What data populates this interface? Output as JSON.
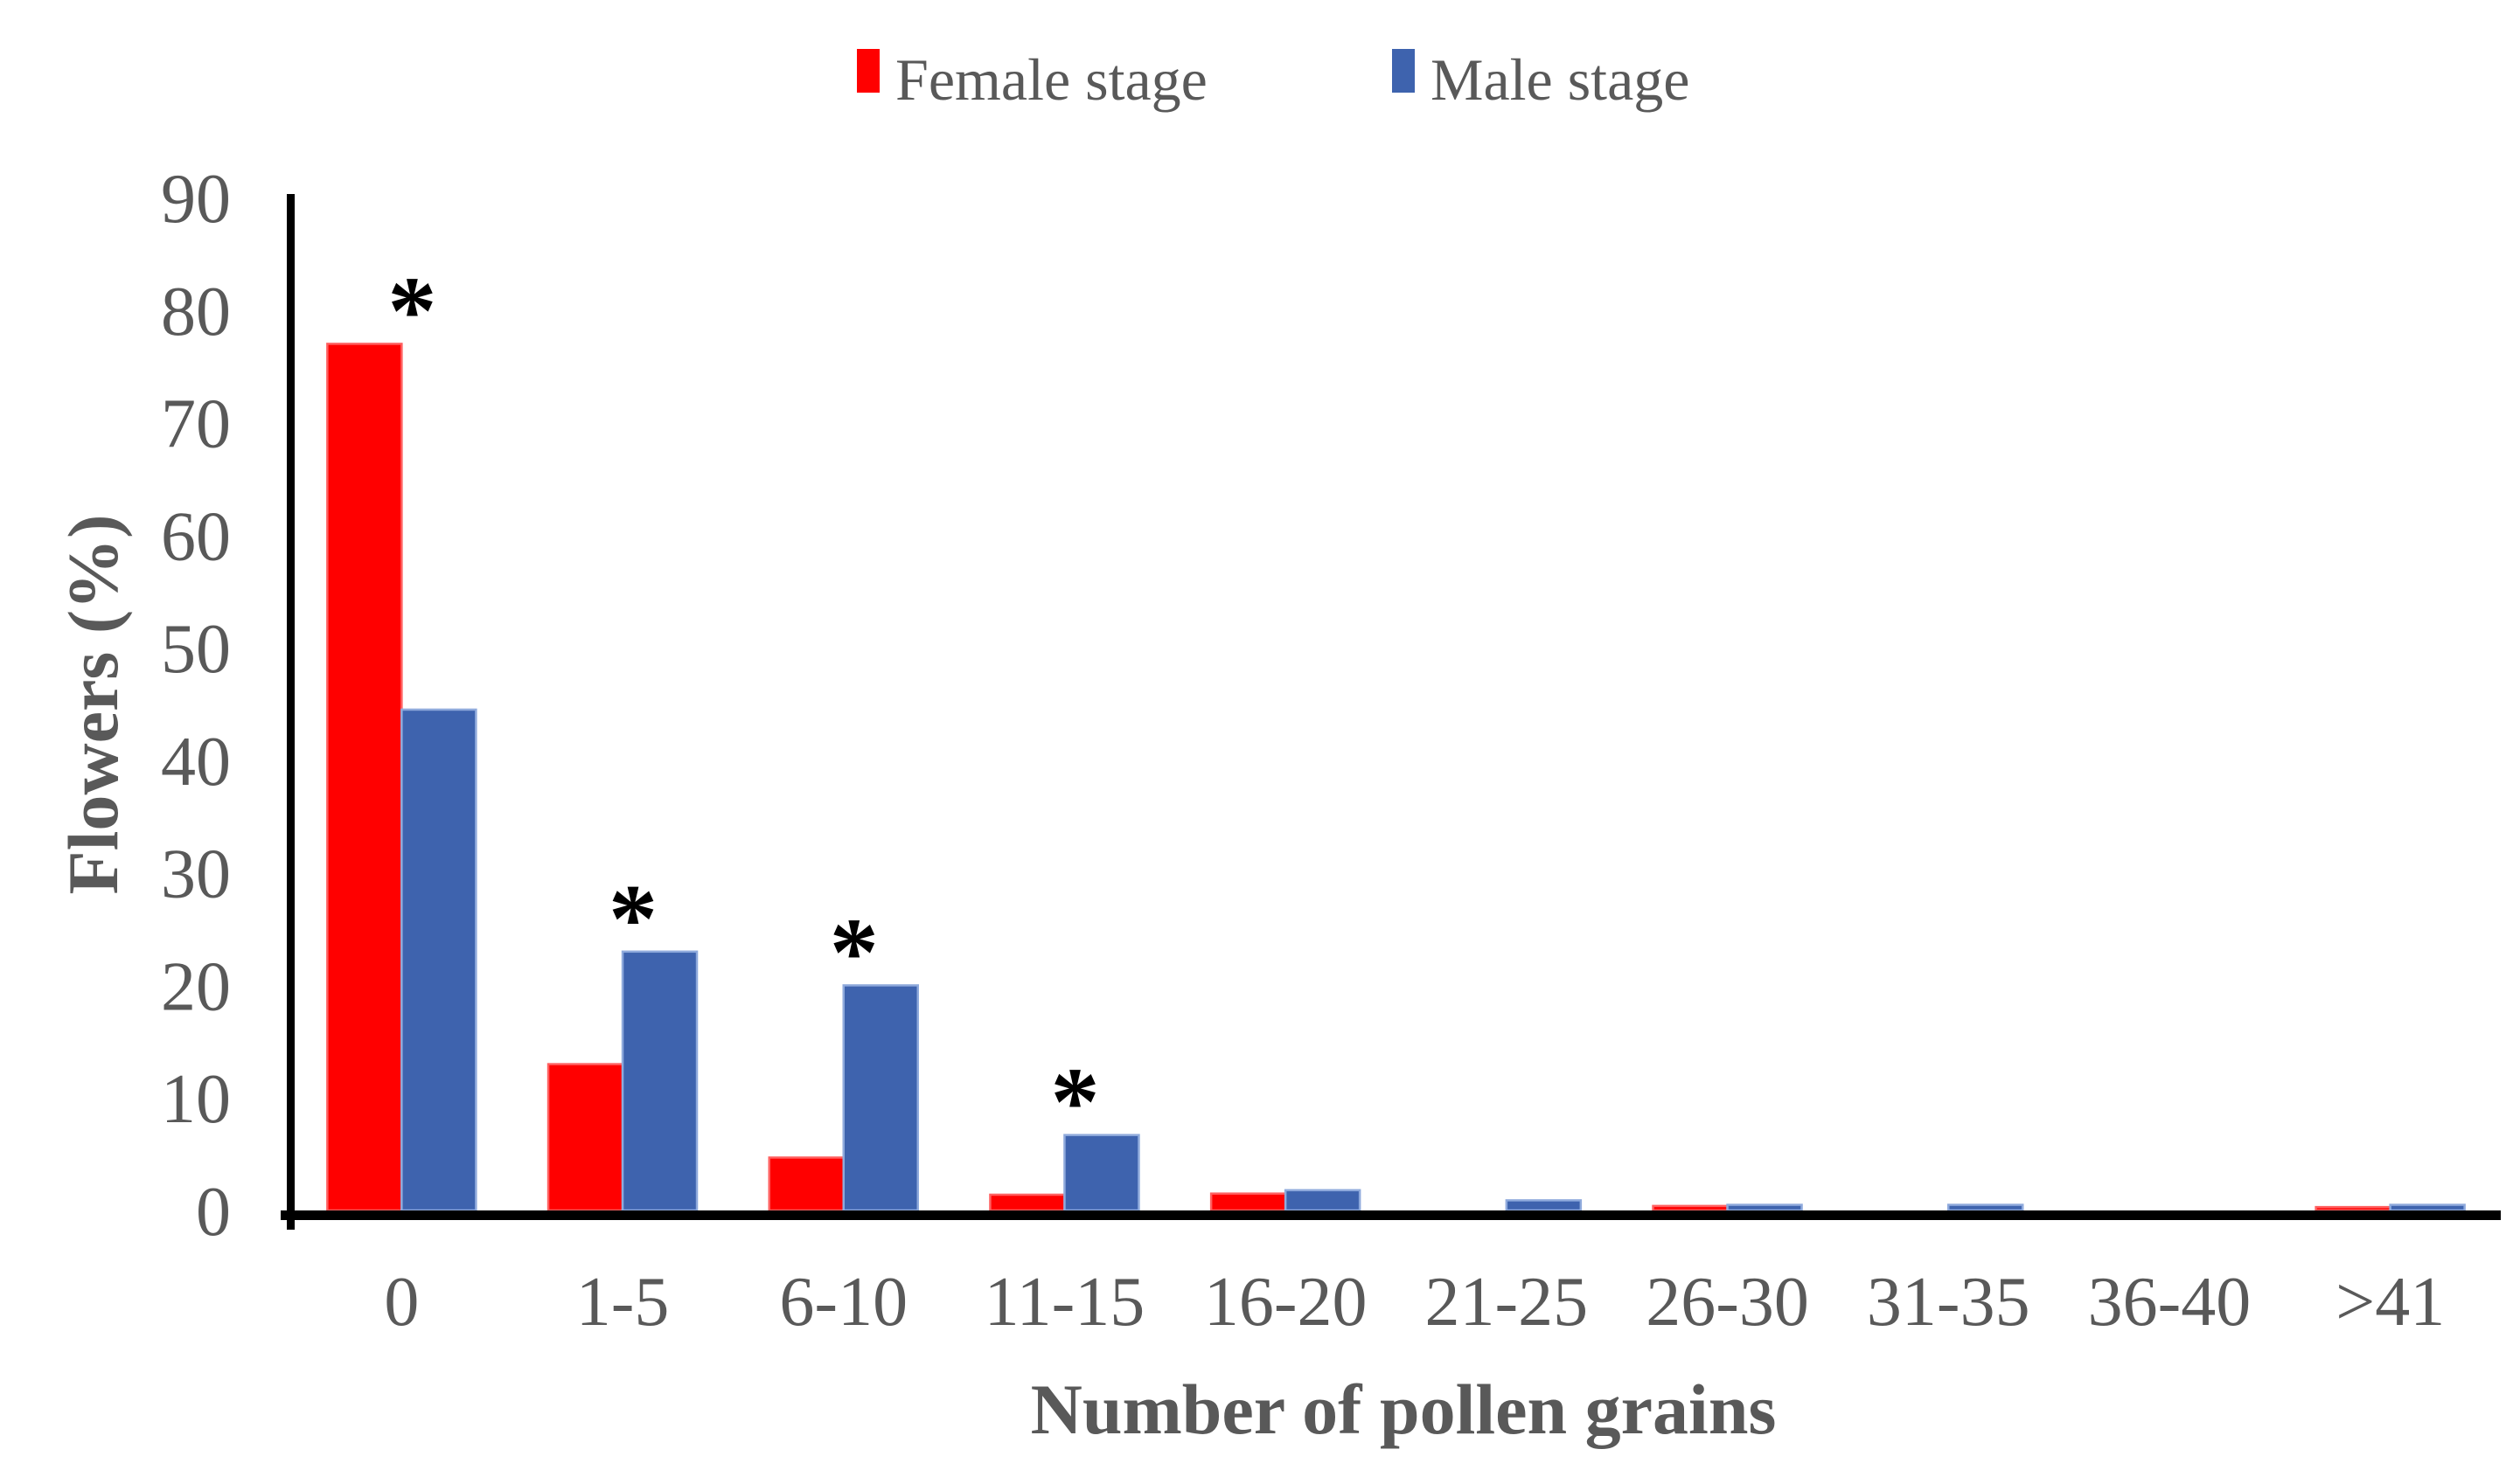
{
  "figure": {
    "background": "#ffffff",
    "text_color": "#595959",
    "axis_color": "#000000"
  },
  "chart_data": {
    "type": "bar",
    "title": "",
    "categories": [
      "0",
      "1-5",
      "6-10",
      "11-15",
      "16-20",
      "21-25",
      "26-30",
      "31-35",
      "36-40",
      ">41"
    ],
    "series": [
      {
        "name": "Female stage",
        "color": "#ff0000",
        "edge_color": "#ff6060",
        "values": [
          77,
          13,
          4.7,
          1.4,
          1.5,
          0,
          0.4,
          0,
          0,
          0.3
        ]
      },
      {
        "name": "Male stage",
        "color": "#3e63ae",
        "edge_color": "#8faadc",
        "values": [
          44.5,
          23,
          20,
          6.7,
          1.8,
          0.9,
          0.5,
          0.5,
          0,
          0.5
        ]
      }
    ],
    "significance_markers": {
      "symbol": "*",
      "groups": [
        "0",
        "1-5",
        "6-10",
        "11-15"
      ]
    },
    "xlabel": "Number of pollen grains",
    "ylabel": "Flowers (%)",
    "ylim": [
      0,
      90
    ],
    "ytick_step": 10,
    "ytick_labels": [
      "0",
      "10",
      "20",
      "30",
      "40",
      "50",
      "60",
      "70",
      "80",
      "90"
    ],
    "grid": false,
    "legend_position": "top-center",
    "legend": {
      "items": [
        {
          "label": "Female stage",
          "color": "#ff0000"
        },
        {
          "label": "Male stage",
          "color": "#3e63ae"
        }
      ]
    }
  }
}
